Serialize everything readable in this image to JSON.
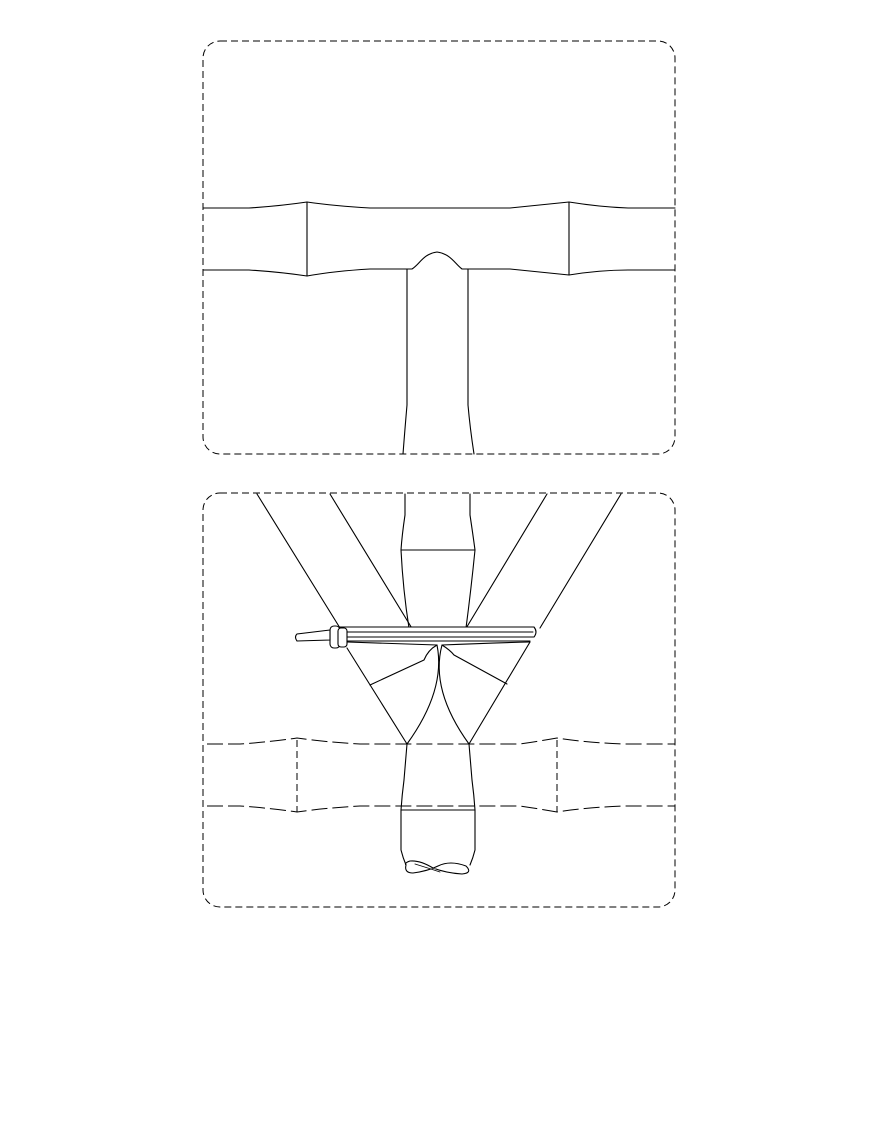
{
  "figure": {
    "panels": [
      {
        "id": "panel-1",
        "content": "tee-joint-before-wrapping"
      },
      {
        "id": "panel-2",
        "content": "tee-joint-bandaged-with-tie"
      }
    ],
    "line_color": "#000000",
    "background": "#ffffff"
  }
}
